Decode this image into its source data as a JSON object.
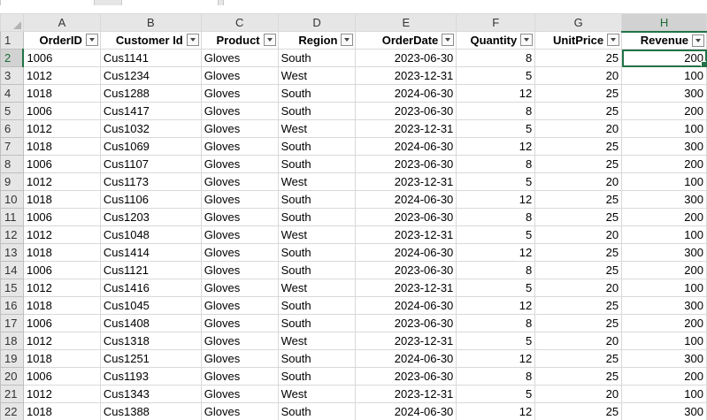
{
  "column_letters": [
    "A",
    "B",
    "C",
    "D",
    "E",
    "F",
    "G",
    "H"
  ],
  "headers": [
    "OrderID",
    "Customer Id",
    "Product",
    "Region",
    "OrderDate",
    "Quantity",
    "UnitPrice",
    "Revenue"
  ],
  "active_column": "H",
  "active_row": "2",
  "rows": [
    {
      "n": "2",
      "cells": [
        "1006",
        "Cus1141",
        "Gloves",
        "South",
        "2023-06-30",
        "8",
        "25",
        "200"
      ]
    },
    {
      "n": "3",
      "cells": [
        "1012",
        "Cus1234",
        "Gloves",
        "West",
        "2023-12-31",
        "5",
        "20",
        "100"
      ]
    },
    {
      "n": "4",
      "cells": [
        "1018",
        "Cus1288",
        "Gloves",
        "South",
        "2024-06-30",
        "12",
        "25",
        "300"
      ]
    },
    {
      "n": "5",
      "cells": [
        "1006",
        "Cus1417",
        "Gloves",
        "South",
        "2023-06-30",
        "8",
        "25",
        "200"
      ]
    },
    {
      "n": "6",
      "cells": [
        "1012",
        "Cus1032",
        "Gloves",
        "West",
        "2023-12-31",
        "5",
        "20",
        "100"
      ]
    },
    {
      "n": "7",
      "cells": [
        "1018",
        "Cus1069",
        "Gloves",
        "South",
        "2024-06-30",
        "12",
        "25",
        "300"
      ]
    },
    {
      "n": "8",
      "cells": [
        "1006",
        "Cus1107",
        "Gloves",
        "South",
        "2023-06-30",
        "8",
        "25",
        "200"
      ]
    },
    {
      "n": "9",
      "cells": [
        "1012",
        "Cus1173",
        "Gloves",
        "West",
        "2023-12-31",
        "5",
        "20",
        "100"
      ]
    },
    {
      "n": "10",
      "cells": [
        "1018",
        "Cus1106",
        "Gloves",
        "South",
        "2024-06-30",
        "12",
        "25",
        "300"
      ]
    },
    {
      "n": "11",
      "cells": [
        "1006",
        "Cus1203",
        "Gloves",
        "South",
        "2023-06-30",
        "8",
        "25",
        "200"
      ]
    },
    {
      "n": "12",
      "cells": [
        "1012",
        "Cus1048",
        "Gloves",
        "West",
        "2023-12-31",
        "5",
        "20",
        "100"
      ]
    },
    {
      "n": "13",
      "cells": [
        "1018",
        "Cus1414",
        "Gloves",
        "South",
        "2024-06-30",
        "12",
        "25",
        "300"
      ]
    },
    {
      "n": "14",
      "cells": [
        "1006",
        "Cus1121",
        "Gloves",
        "South",
        "2023-06-30",
        "8",
        "25",
        "200"
      ]
    },
    {
      "n": "15",
      "cells": [
        "1012",
        "Cus1416",
        "Gloves",
        "West",
        "2023-12-31",
        "5",
        "20",
        "100"
      ]
    },
    {
      "n": "16",
      "cells": [
        "1018",
        "Cus1045",
        "Gloves",
        "South",
        "2024-06-30",
        "12",
        "25",
        "300"
      ]
    },
    {
      "n": "17",
      "cells": [
        "1006",
        "Cus1408",
        "Gloves",
        "South",
        "2023-06-30",
        "8",
        "25",
        "200"
      ]
    },
    {
      "n": "18",
      "cells": [
        "1012",
        "Cus1318",
        "Gloves",
        "West",
        "2023-12-31",
        "5",
        "20",
        "100"
      ]
    },
    {
      "n": "19",
      "cells": [
        "1018",
        "Cus1251",
        "Gloves",
        "South",
        "2024-06-30",
        "12",
        "25",
        "300"
      ]
    },
    {
      "n": "20",
      "cells": [
        "1006",
        "Cus1193",
        "Gloves",
        "South",
        "2023-06-30",
        "8",
        "25",
        "200"
      ]
    },
    {
      "n": "21",
      "cells": [
        "1012",
        "Cus1343",
        "Gloves",
        "West",
        "2023-12-31",
        "5",
        "20",
        "100"
      ]
    },
    {
      "n": "22",
      "cells": [
        "1018",
        "Cus1388",
        "Gloves",
        "South",
        "2024-06-30",
        "12",
        "25",
        "300"
      ]
    }
  ],
  "colors": {
    "accent": "#217346",
    "header_bg": "#e6e6e6",
    "gridline": "#d9d9d9"
  }
}
